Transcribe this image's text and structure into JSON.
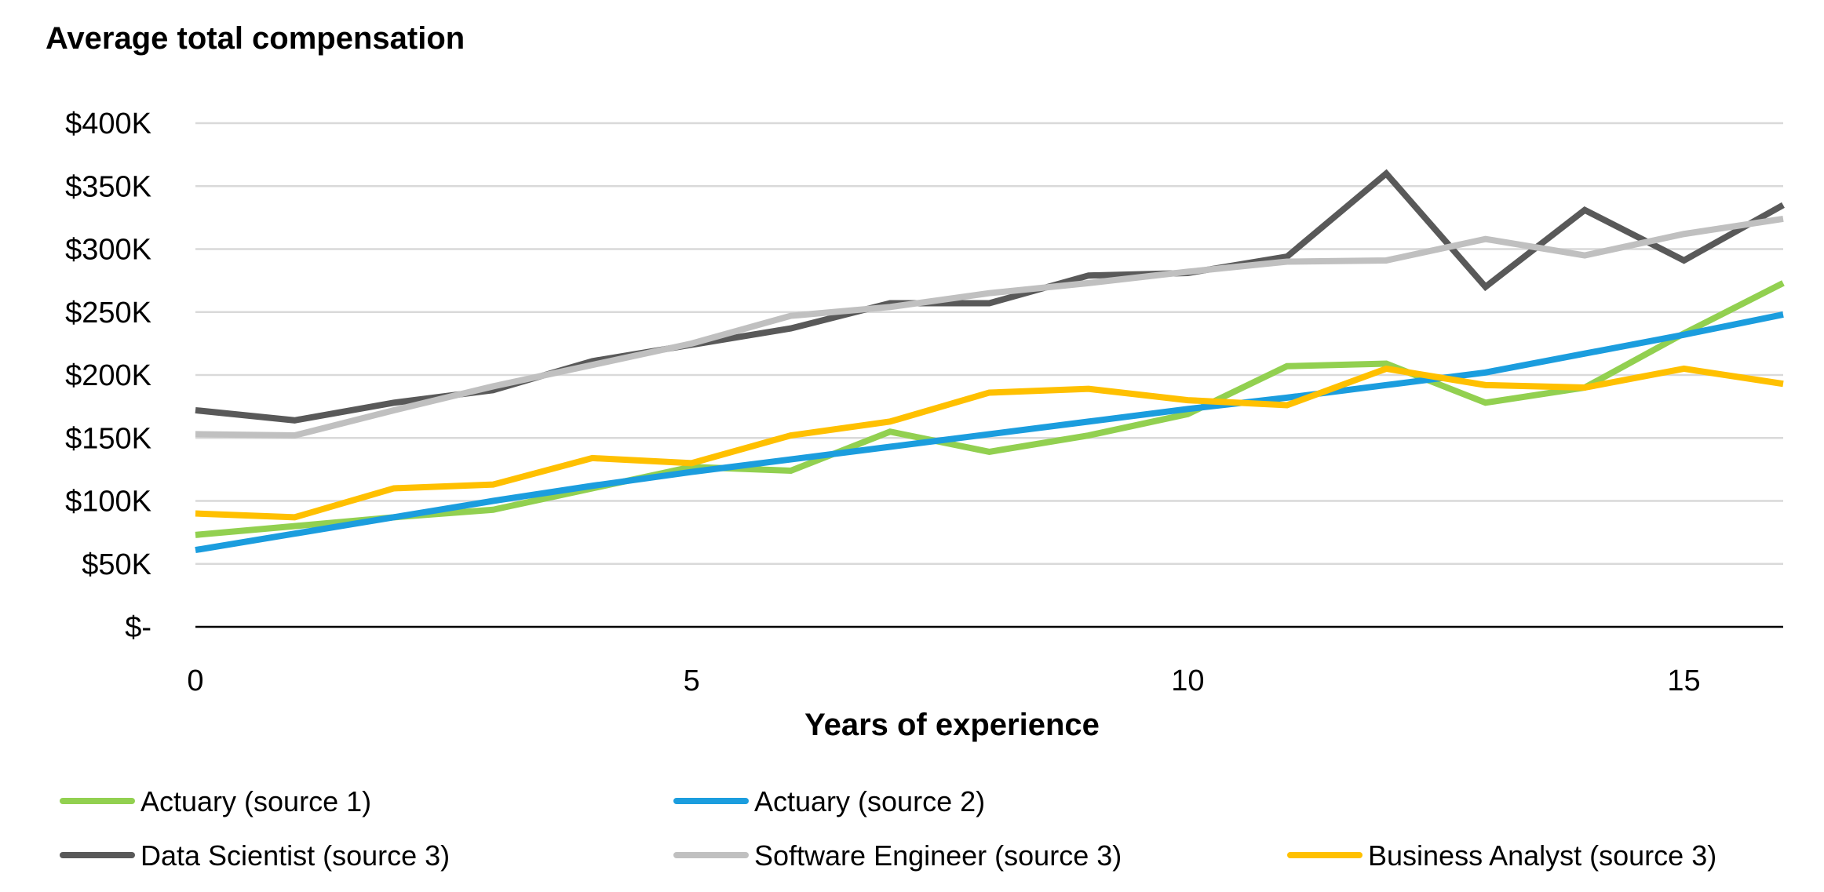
{
  "chart_data": {
    "type": "line",
    "title": "Average total compensation",
    "xlabel": "Years of experience",
    "ylabel": "",
    "xlim": [
      0,
      16
    ],
    "ylim": [
      0,
      400000
    ],
    "x_ticks": [
      {
        "value": 0,
        "label": "0"
      },
      {
        "value": 5,
        "label": "5"
      },
      {
        "value": 10,
        "label": "10"
      },
      {
        "value": 15,
        "label": "15"
      }
    ],
    "y_ticks": [
      {
        "value": 0,
        "label": "$-"
      },
      {
        "value": 50000,
        "label": "$50K"
      },
      {
        "value": 100000,
        "label": "$100K"
      },
      {
        "value": 150000,
        "label": "$150K"
      },
      {
        "value": 200000,
        "label": "$200K"
      },
      {
        "value": 250000,
        "label": "$250K"
      },
      {
        "value": 300000,
        "label": "$300K"
      },
      {
        "value": 350000,
        "label": "$350K"
      },
      {
        "value": 400000,
        "label": "$400K"
      }
    ],
    "grid": true,
    "legend_position": "bottom",
    "x": [
      0,
      1,
      2,
      3,
      4,
      5,
      6,
      7,
      8,
      9,
      10,
      11,
      12,
      13,
      14,
      15,
      16
    ],
    "series": [
      {
        "name": "Actuary (source 1)",
        "color": "#92D050",
        "values": [
          73000,
          80000,
          87000,
          93000,
          110000,
          127000,
          124000,
          155000,
          139000,
          152000,
          169000,
          207000,
          209000,
          178000,
          190000,
          233000,
          273000
        ]
      },
      {
        "name": "Actuary (source 2)",
        "color": "#1B9DDE",
        "values": [
          61000,
          74000,
          87000,
          100000,
          112000,
          123000,
          133000,
          143000,
          153000,
          163000,
          173000,
          182000,
          192000,
          202000,
          217000,
          232000,
          248000
        ]
      },
      {
        "name": "Data Scientist (source 3)",
        "color": "#595959",
        "values": [
          172000,
          164000,
          178000,
          188000,
          211000,
          224000,
          237000,
          257000,
          257000,
          279000,
          281000,
          294000,
          360000,
          270000,
          331000,
          291000,
          335000
        ]
      },
      {
        "name": "Software Engineer (source 3)",
        "color": "#C0C0C0",
        "values": [
          153000,
          152000,
          172000,
          191000,
          208000,
          225000,
          247000,
          254000,
          265000,
          273000,
          282000,
          290000,
          291000,
          308000,
          295000,
          312000,
          324000
        ]
      },
      {
        "name": "Business Analyst (source 3)",
        "color": "#FFC000",
        "values": [
          90000,
          87000,
          110000,
          113000,
          134000,
          130000,
          152000,
          163000,
          186000,
          189000,
          180000,
          176000,
          205000,
          192000,
          190000,
          205000,
          193000
        ]
      }
    ]
  }
}
